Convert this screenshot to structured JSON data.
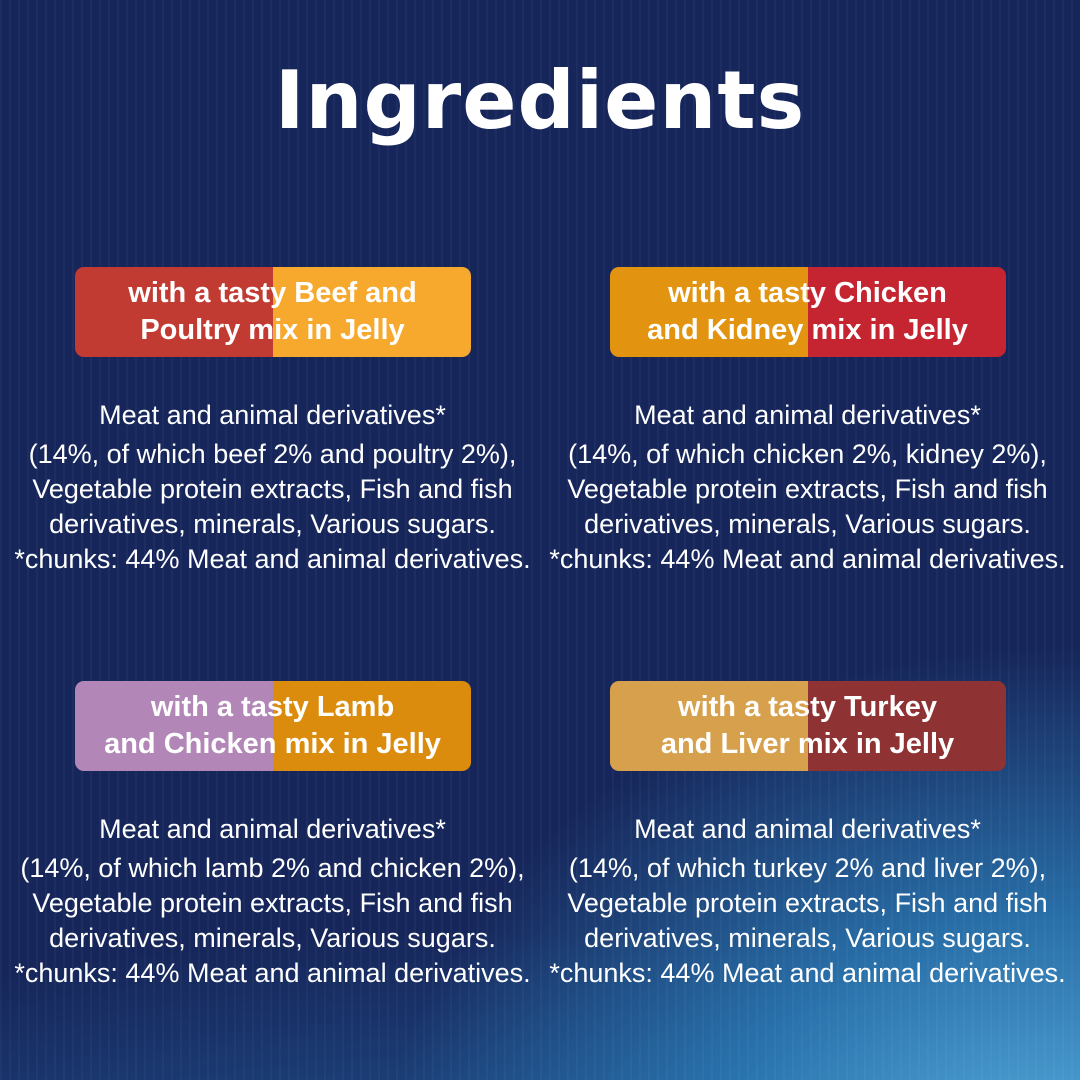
{
  "page": {
    "title": "Ingredients",
    "colors": {
      "background_navy": "#16265a",
      "background_glow_blue": "#2e86c1",
      "text_white": "#ffffff"
    }
  },
  "quadrants": [
    {
      "variety": "beef-poultry",
      "banner": {
        "line1": "with a tasty Beef and",
        "line2": "Poultry mix in Jelly",
        "left_color": "#c23b33",
        "right_color": "#f7a92d"
      },
      "ingredients_lines": [
        "Meat and animal derivatives*",
        "(14%, of which beef 2% and poultry 2%),",
        "Vegetable protein extracts, Fish and fish",
        "derivatives, minerals, Various sugars.",
        "*chunks: 44% Meat and animal derivatives."
      ]
    },
    {
      "variety": "chicken-kidney",
      "banner": {
        "line1": "with a tasty Chicken",
        "line2": "and Kidney mix in Jelly",
        "left_color": "#e2930f",
        "right_color": "#c52531"
      },
      "ingredients_lines": [
        "Meat and animal derivatives*",
        "(14%, of which chicken 2%, kidney 2%),",
        "Vegetable protein extracts, Fish and fish",
        "derivatives, minerals, Various sugars.",
        "*chunks: 44% Meat and animal derivatives."
      ]
    },
    {
      "variety": "lamb-chicken",
      "banner": {
        "line1": "with a tasty Lamb",
        "line2": "and Chicken mix in Jelly",
        "left_color": "#b287b8",
        "right_color": "#dc8c0d"
      },
      "ingredients_lines": [
        "Meat and animal derivatives*",
        "(14%, of which lamb 2% and chicken 2%),",
        "Vegetable protein extracts, Fish and fish",
        "derivatives, minerals, Various sugars.",
        "*chunks: 44% Meat and animal derivatives."
      ]
    },
    {
      "variety": "turkey-liver",
      "banner": {
        "line1": "with a tasty Turkey",
        "line2": "and Liver mix in Jelly",
        "left_color": "#d7a04d",
        "right_color": "#8e3233"
      },
      "ingredients_lines": [
        "Meat and animal derivatives*",
        "(14%, of which turkey 2% and liver 2%),",
        "Vegetable protein extracts, Fish and fish",
        "derivatives, minerals, Various sugars.",
        "*chunks: 44% Meat and animal derivatives."
      ]
    }
  ]
}
